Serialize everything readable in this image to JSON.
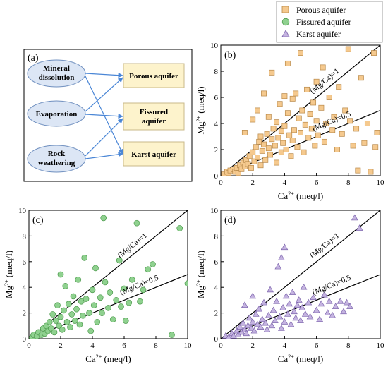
{
  "legend": {
    "items": [
      {
        "label": "Porous aquifer",
        "color": "#f5c98e",
        "stroke": "#b8894a",
        "shape": "square"
      },
      {
        "label": "Fissured aquifer",
        "color": "#8fd18f",
        "stroke": "#4d9a4d",
        "shape": "circle"
      },
      {
        "label": "Karst aquifer",
        "color": "#c4b3e0",
        "stroke": "#7e66ad",
        "shape": "triangle"
      }
    ]
  },
  "diagram": {
    "panel_label": "(a)",
    "processes": [
      "Mineral dissolution",
      "Evaporation",
      "Rock weathering"
    ],
    "aquifers": [
      "Porous aquifer",
      "Fissured aquifer",
      "Karst aquifer"
    ]
  },
  "chart_data": [
    {
      "type": "scatter",
      "panel": "(b)",
      "series_name": "Porous aquifer",
      "xlabel_main": "Ca",
      "xlabel_sup": "2+",
      "xlabel_unit": " (meq/l)",
      "ylabel_main": "Mg",
      "ylabel_sup": "2+",
      "ylabel_unit": " (meq/l)",
      "xlim": [
        0,
        10
      ],
      "ylim": [
        0,
        10
      ],
      "ticks": [
        0,
        2,
        4,
        6,
        8,
        10
      ],
      "lines": [
        {
          "label": "(Mg/Ca)=1",
          "slope": 1
        },
        {
          "label": "(Mg/Ca)=0.5",
          "slope": 0.5
        }
      ],
      "points": [
        [
          0.2,
          0.1
        ],
        [
          0.4,
          0.3
        ],
        [
          0.5,
          0.2
        ],
        [
          0.6,
          0.4
        ],
        [
          0.8,
          0.5
        ],
        [
          0.9,
          0.3
        ],
        [
          1.0,
          0.6
        ],
        [
          1.1,
          0.2
        ],
        [
          1.2,
          0.8
        ],
        [
          1.3,
          0.5
        ],
        [
          1.4,
          1.0
        ],
        [
          1.5,
          0.7
        ],
        [
          1.5,
          3.3
        ],
        [
          1.6,
          1.2
        ],
        [
          1.7,
          0.9
        ],
        [
          1.8,
          1.5
        ],
        [
          1.9,
          0.6
        ],
        [
          2.0,
          1.8
        ],
        [
          2.0,
          4.3
        ],
        [
          2.1,
          1.1
        ],
        [
          2.2,
          2.2
        ],
        [
          2.3,
          1.4
        ],
        [
          2.3,
          5.0
        ],
        [
          2.4,
          2.6
        ],
        [
          2.5,
          0.8
        ],
        [
          2.5,
          3.0
        ],
        [
          2.6,
          1.9
        ],
        [
          2.7,
          2.4
        ],
        [
          2.7,
          6.3
        ],
        [
          2.8,
          1.2
        ],
        [
          2.9,
          3.2
        ],
        [
          3.0,
          2.1
        ],
        [
          3.0,
          4.5
        ],
        [
          3.1,
          1.6
        ],
        [
          3.2,
          2.8
        ],
        [
          3.2,
          7.9
        ],
        [
          3.3,
          3.6
        ],
        [
          3.4,
          2.3
        ],
        [
          3.5,
          1.0
        ],
        [
          3.5,
          4.1
        ],
        [
          3.6,
          2.9
        ],
        [
          3.7,
          5.5
        ],
        [
          3.8,
          1.8
        ],
        [
          3.8,
          3.4
        ],
        [
          3.9,
          2.5
        ],
        [
          4.0,
          6.1
        ],
        [
          4.0,
          3.8
        ],
        [
          4.1,
          2.0
        ],
        [
          4.2,
          4.8
        ],
        [
          4.2,
          8.6
        ],
        [
          4.3,
          3.1
        ],
        [
          4.4,
          1.5
        ],
        [
          4.5,
          5.9
        ],
        [
          4.5,
          2.7
        ],
        [
          4.6,
          3.5
        ],
        [
          4.7,
          6.3
        ],
        [
          4.8,
          2.2
        ],
        [
          4.9,
          4.4
        ],
        [
          5.0,
          9.4
        ],
        [
          5.0,
          3.3
        ],
        [
          5.1,
          5.0
        ],
        [
          5.2,
          1.8
        ],
        [
          5.3,
          3.9
        ],
        [
          5.4,
          6.6
        ],
        [
          5.5,
          2.9
        ],
        [
          5.6,
          4.7
        ],
        [
          5.7,
          3.6
        ],
        [
          5.8,
          5.6
        ],
        [
          5.9,
          2.3
        ],
        [
          6.0,
          7.2
        ],
        [
          6.0,
          4.2
        ],
        [
          6.1,
          3.1
        ],
        [
          6.3,
          5.2
        ],
        [
          6.4,
          8.3
        ],
        [
          6.5,
          2.6
        ],
        [
          6.6,
          4.0
        ],
        [
          6.8,
          6.0
        ],
        [
          7.0,
          3.5
        ],
        [
          7.1,
          4.5
        ],
        [
          7.3,
          2.0
        ],
        [
          7.4,
          6.8
        ],
        [
          7.6,
          3.2
        ],
        [
          7.8,
          5.0
        ],
        [
          8.0,
          9.7
        ],
        [
          8.1,
          4.2
        ],
        [
          8.3,
          2.3
        ],
        [
          8.5,
          3.6
        ],
        [
          8.6,
          0.4
        ],
        [
          8.8,
          7.5
        ],
        [
          9.0,
          2.5
        ],
        [
          9.2,
          4.0
        ],
        [
          9.4,
          0.3
        ],
        [
          9.6,
          9.4
        ],
        [
          9.7,
          2.2
        ],
        [
          9.8,
          3.3
        ]
      ]
    },
    {
      "type": "scatter",
      "panel": "(c)",
      "series_name": "Fissured aquifer",
      "xlabel_main": "Ca",
      "xlabel_sup": "2+",
      "xlabel_unit": " (meq/l)",
      "ylabel_main": "Mg",
      "ylabel_sup": "2+",
      "ylabel_unit": " (meq/l)",
      "xlim": [
        0,
        10
      ],
      "ylim": [
        0,
        10
      ],
      "ticks": [
        0,
        2,
        4,
        6,
        8,
        10
      ],
      "lines": [
        {
          "label": "(Mg/Ca)=1",
          "slope": 1
        },
        {
          "label": "(Mg/Ca)=0.5",
          "slope": 0.5
        }
      ],
      "points": [
        [
          0.2,
          0.1
        ],
        [
          0.3,
          0.3
        ],
        [
          0.5,
          0.2
        ],
        [
          0.6,
          0.5
        ],
        [
          0.8,
          0.3
        ],
        [
          0.9,
          0.8
        ],
        [
          1.0,
          0.4
        ],
        [
          1.1,
          1.0
        ],
        [
          1.2,
          0.6
        ],
        [
          1.3,
          1.3
        ],
        [
          1.4,
          0.8
        ],
        [
          1.5,
          1.9
        ],
        [
          1.6,
          0.5
        ],
        [
          1.7,
          1.4
        ],
        [
          1.8,
          2.6
        ],
        [
          1.9,
          1.0
        ],
        [
          2.0,
          1.7
        ],
        [
          2.0,
          5.0
        ],
        [
          2.1,
          0.7
        ],
        [
          2.2,
          2.2
        ],
        [
          2.3,
          4.1
        ],
        [
          2.4,
          1.3
        ],
        [
          2.5,
          2.7
        ],
        [
          2.6,
          0.9
        ],
        [
          2.7,
          1.9
        ],
        [
          2.8,
          3.3
        ],
        [
          2.9,
          1.4
        ],
        [
          3.0,
          2.3
        ],
        [
          3.1,
          4.6
        ],
        [
          3.2,
          1.1
        ],
        [
          3.3,
          2.9
        ],
        [
          3.4,
          1.8
        ],
        [
          3.5,
          6.3
        ],
        [
          3.6,
          3.1
        ],
        [
          3.8,
          2.0
        ],
        [
          3.9,
          0.6
        ],
        [
          4.0,
          3.8
        ],
        [
          4.1,
          2.6
        ],
        [
          4.2,
          5.5
        ],
        [
          4.3,
          1.3
        ],
        [
          4.5,
          3.2
        ],
        [
          4.6,
          2.0
        ],
        [
          4.7,
          9.4
        ],
        [
          4.8,
          4.4
        ],
        [
          5.0,
          2.4
        ],
        [
          5.1,
          3.6
        ],
        [
          5.3,
          1.5
        ],
        [
          5.5,
          3.0
        ],
        [
          5.7,
          6.1
        ],
        [
          5.8,
          2.5
        ],
        [
          6.0,
          3.9
        ],
        [
          6.1,
          1.4
        ],
        [
          6.3,
          2.8
        ],
        [
          6.5,
          4.6
        ],
        [
          6.8,
          9.0
        ],
        [
          7.0,
          2.9
        ],
        [
          7.2,
          3.8
        ],
        [
          7.5,
          5.4
        ],
        [
          7.8,
          5.8
        ],
        [
          9.0,
          0.3
        ],
        [
          9.5,
          8.6
        ],
        [
          10.0,
          4.3
        ]
      ]
    },
    {
      "type": "scatter",
      "panel": "(d)",
      "series_name": "Karst aquifer",
      "xlabel_main": "Ca",
      "xlabel_sup": "2+",
      "xlabel_unit": " (meq/l)",
      "ylabel_main": "Mg",
      "ylabel_sup": "2+",
      "ylabel_unit": " (meq/l)",
      "xlim": [
        0,
        10
      ],
      "ylim": [
        0,
        10
      ],
      "ticks": [
        0,
        2,
        4,
        6,
        8,
        10
      ],
      "lines": [
        {
          "label": "(Mg/Ca)=1",
          "slope": 1
        },
        {
          "label": "(Mg/Ca)=0.5",
          "slope": 0.5
        }
      ],
      "points": [
        [
          0.3,
          0.2
        ],
        [
          0.5,
          0.1
        ],
        [
          0.7,
          0.4
        ],
        [
          0.8,
          0.2
        ],
        [
          1.0,
          0.6
        ],
        [
          1.1,
          0.3
        ],
        [
          1.2,
          0.9
        ],
        [
          1.3,
          0.5
        ],
        [
          1.4,
          1.2
        ],
        [
          1.5,
          0.7
        ],
        [
          1.5,
          2.6
        ],
        [
          1.6,
          0.4
        ],
        [
          1.7,
          1.0
        ],
        [
          1.8,
          1.6
        ],
        [
          1.9,
          0.8
        ],
        [
          2.0,
          1.3
        ],
        [
          2.0,
          3.3
        ],
        [
          2.1,
          0.6
        ],
        [
          2.2,
          1.9
        ],
        [
          2.3,
          1.1
        ],
        [
          2.4,
          2.3
        ],
        [
          2.5,
          0.9
        ],
        [
          2.6,
          1.5
        ],
        [
          2.7,
          2.8
        ],
        [
          2.8,
          1.2
        ],
        [
          2.9,
          0.7
        ],
        [
          3.0,
          1.8
        ],
        [
          3.1,
          3.8
        ],
        [
          3.2,
          1.0
        ],
        [
          3.3,
          2.2
        ],
        [
          3.4,
          1.4
        ],
        [
          3.5,
          2.9
        ],
        [
          3.6,
          5.6
        ],
        [
          3.7,
          1.7
        ],
        [
          3.8,
          0.8
        ],
        [
          3.8,
          6.3
        ],
        [
          3.9,
          2.4
        ],
        [
          4.0,
          1.3
        ],
        [
          4.0,
          7.1
        ],
        [
          4.1,
          3.3
        ],
        [
          4.2,
          1.9
        ],
        [
          4.3,
          2.7
        ],
        [
          4.4,
          1.1
        ],
        [
          4.5,
          3.6
        ],
        [
          4.6,
          2.1
        ],
        [
          4.7,
          1.6
        ],
        [
          4.8,
          2.6
        ],
        [
          4.9,
          3.0
        ],
        [
          5.0,
          1.4
        ],
        [
          5.1,
          2.4
        ],
        [
          5.2,
          4.0
        ],
        [
          5.3,
          1.9
        ],
        [
          5.5,
          2.8
        ],
        [
          5.6,
          1.7
        ],
        [
          5.8,
          3.2
        ],
        [
          6.0,
          2.2
        ],
        [
          6.2,
          1.5
        ],
        [
          6.3,
          2.7
        ],
        [
          6.5,
          3.4
        ],
        [
          6.7,
          2.0
        ],
        [
          6.8,
          2.9
        ],
        [
          7.0,
          1.8
        ],
        [
          7.2,
          2.5
        ],
        [
          7.5,
          2.9
        ],
        [
          7.7,
          2.1
        ],
        [
          7.9,
          2.8
        ],
        [
          8.1,
          2.5
        ],
        [
          8.4,
          9.4
        ],
        [
          8.7,
          8.6
        ]
      ]
    }
  ]
}
